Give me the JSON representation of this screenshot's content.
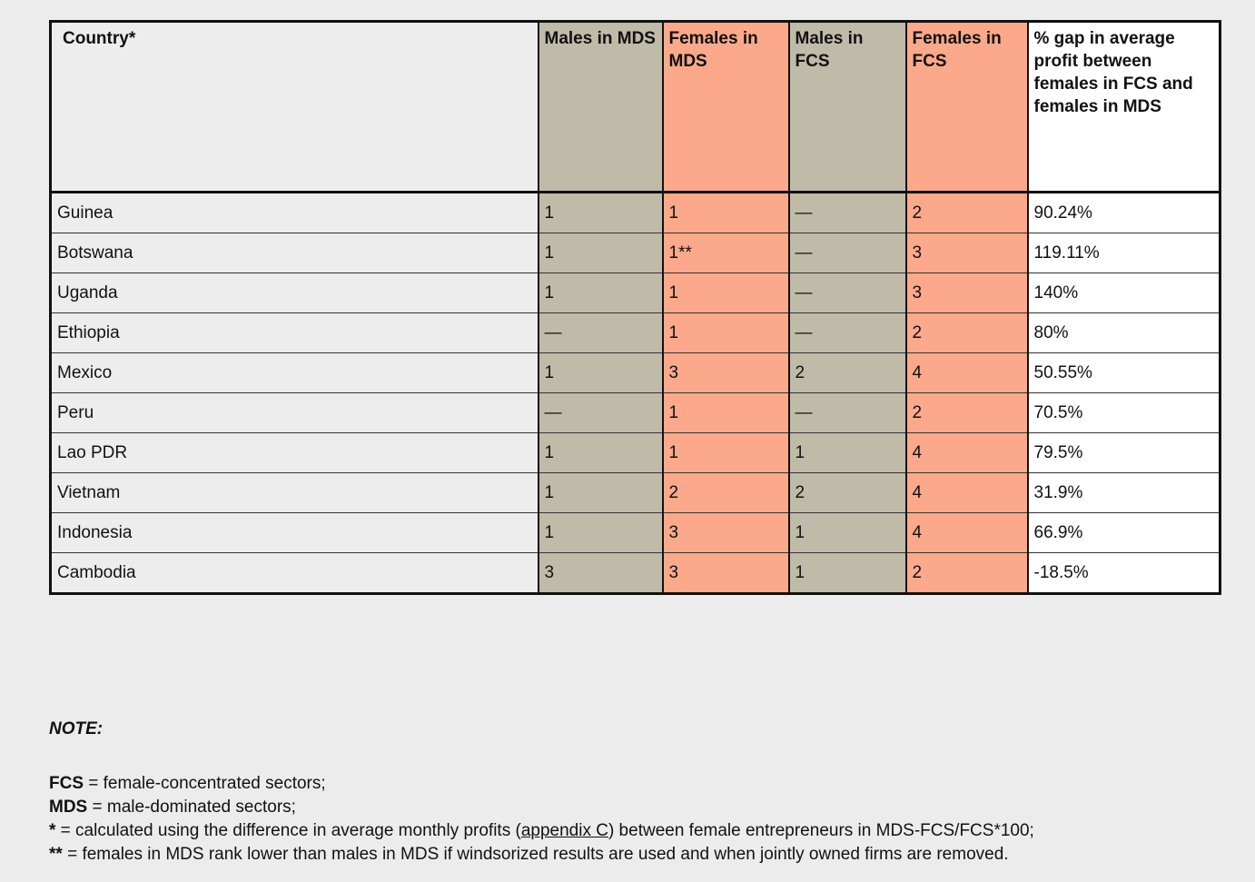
{
  "table": {
    "headers": [
      "Country*",
      "Males in MDS",
      "Females in MDS",
      "Males in FCS",
      "Females in FCS",
      "% gap in average profit between females in FCS and females in MDS"
    ],
    "rows": [
      [
        "Guinea",
        "1",
        "1",
        "—",
        "2",
        "90.24%"
      ],
      [
        "Botswana",
        "1",
        "1**",
        "—",
        "3",
        "119.11%"
      ],
      [
        "Uganda",
        "1",
        "1",
        "—",
        "3",
        "140%"
      ],
      [
        "Ethiopia",
        "—",
        "1",
        "—",
        "2",
        "80%"
      ],
      [
        "Mexico",
        "1",
        "3",
        "2",
        "4",
        "50.55%"
      ],
      [
        "Peru",
        "—",
        "1",
        "—",
        "2",
        "70.5%"
      ],
      [
        "Lao PDR",
        "1",
        "1",
        "1",
        "4",
        "79.5%"
      ],
      [
        "Vietnam",
        "1",
        "2",
        "2",
        "4",
        "31.9%"
      ],
      [
        "Indonesia",
        "1",
        "3",
        "1",
        "4",
        "66.9%"
      ],
      [
        "Cambodia",
        "3",
        "3",
        "1",
        "2",
        "-18.5%"
      ]
    ]
  },
  "colors": {
    "males_column": "#c0baa8",
    "females_column": "#fba98a",
    "page_background": "#ececec"
  },
  "notes": {
    "title": "NOTE:",
    "fcs_term": "FCS",
    "fcs_text": " = female-concentrated sectors;",
    "mds_term": "MDS",
    "mds_text": " = male-dominated sectors;",
    "star_term": "*",
    "star_text_before": " = calculated using the difference in average monthly profits (",
    "star_link": "appendix C",
    "star_text_after": ") between female entrepreneurs in MDS-FCS/FCS*100;",
    "dstar_term": "**",
    "dstar_text": " = females in MDS rank lower than males in MDS if windsorized results are used and when jointly owned firms are removed."
  }
}
